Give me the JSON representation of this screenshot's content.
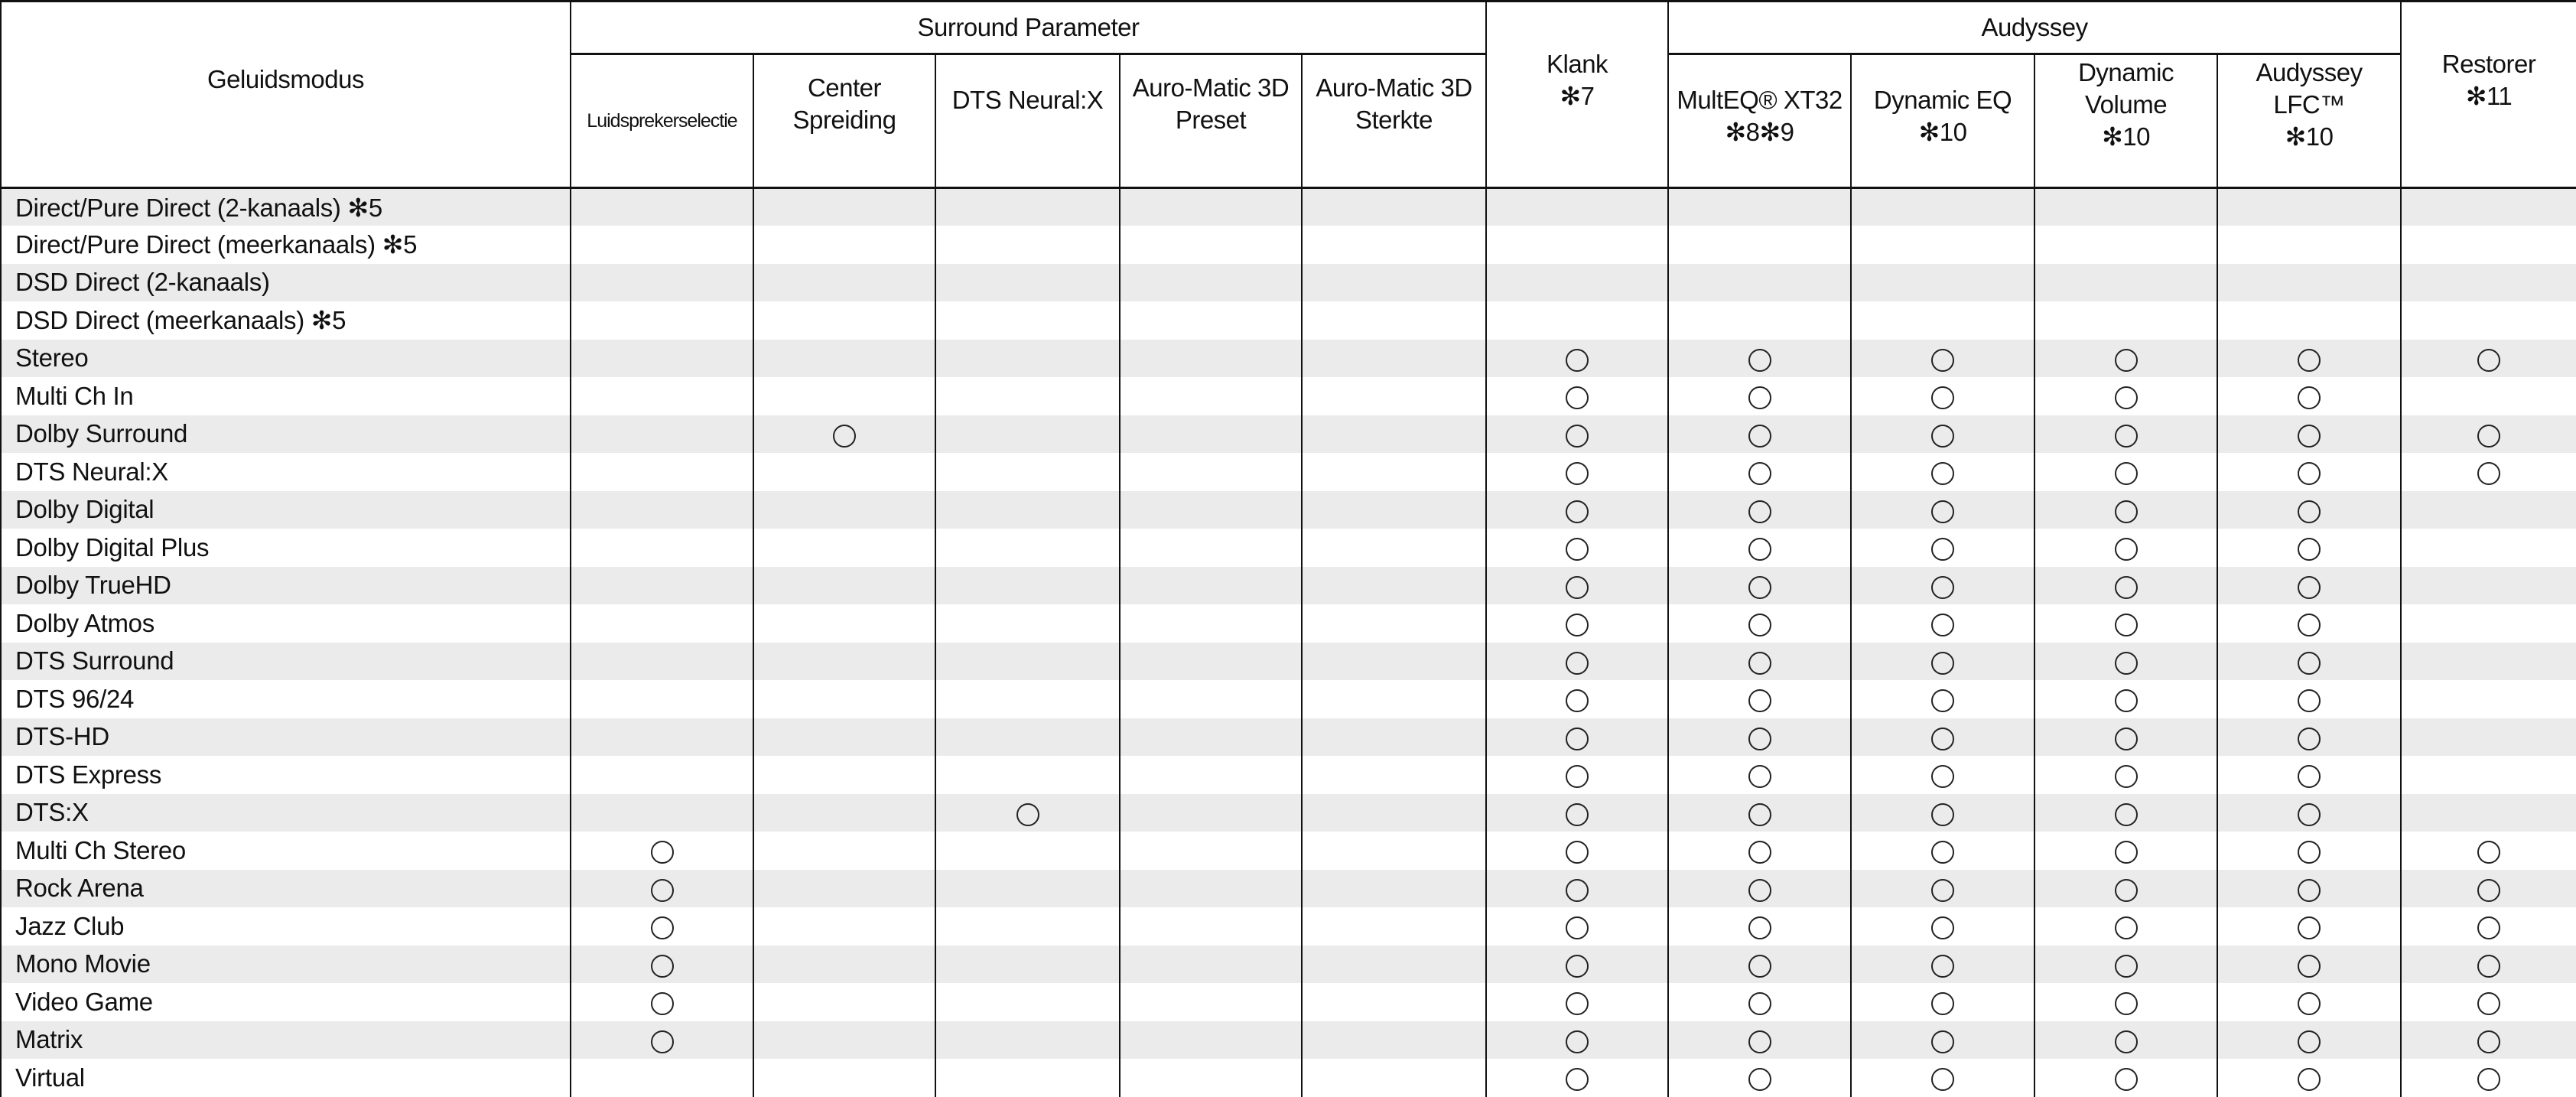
{
  "header": {
    "mode": "Geluidsmodus",
    "surround_group": "Surround Parameter",
    "klank": [
      "Klank",
      "✻7"
    ],
    "audyssey_group": "Audyssey",
    "restorer": [
      "Restorer",
      "✻11"
    ],
    "columns": [
      [
        "Luidsprekerselectie"
      ],
      [
        "Center",
        "Spreiding"
      ],
      [
        "DTS Neural:X"
      ],
      [
        "Auro-Matic 3D",
        "Preset"
      ],
      [
        "Auro-Matic 3D",
        "Sterkte"
      ],
      [
        "MultEQ® XT32",
        "✻8✻9"
      ],
      [
        "Dynamic EQ",
        "✻10"
      ],
      [
        "Dynamic",
        "Volume",
        "✻10"
      ],
      [
        "Audyssey",
        "LFC™",
        "✻10"
      ]
    ]
  },
  "column_order": [
    "Luidsprekerselectie",
    "Center Spreiding",
    "DTS Neural:X",
    "Auro-Matic 3D Preset",
    "Auro-Matic 3D Sterkte",
    "Klank",
    "MultEQ XT32",
    "Dynamic EQ",
    "Dynamic Volume",
    "Audyssey LFC",
    "Restorer"
  ],
  "mark_icon": "circle",
  "rows": [
    {
      "mode": "Direct/Pure Direct (2-kanaals) ✻5",
      "marks": [
        0,
        0,
        0,
        0,
        0,
        0,
        0,
        0,
        0,
        0,
        0
      ]
    },
    {
      "mode": "Direct/Pure Direct (meerkanaals) ✻5",
      "marks": [
        0,
        0,
        0,
        0,
        0,
        0,
        0,
        0,
        0,
        0,
        0
      ]
    },
    {
      "mode": "DSD Direct (2-kanaals)",
      "marks": [
        0,
        0,
        0,
        0,
        0,
        0,
        0,
        0,
        0,
        0,
        0
      ]
    },
    {
      "mode": "DSD Direct (meerkanaals) ✻5",
      "marks": [
        0,
        0,
        0,
        0,
        0,
        0,
        0,
        0,
        0,
        0,
        0
      ]
    },
    {
      "mode": "Stereo",
      "marks": [
        0,
        0,
        0,
        0,
        0,
        1,
        1,
        1,
        1,
        1,
        1
      ]
    },
    {
      "mode": "Multi Ch In",
      "marks": [
        0,
        0,
        0,
        0,
        0,
        1,
        1,
        1,
        1,
        1,
        0
      ]
    },
    {
      "mode": "Dolby Surround",
      "marks": [
        0,
        1,
        0,
        0,
        0,
        1,
        1,
        1,
        1,
        1,
        1
      ]
    },
    {
      "mode": "DTS Neural:X",
      "marks": [
        0,
        0,
        0,
        0,
        0,
        1,
        1,
        1,
        1,
        1,
        1
      ]
    },
    {
      "mode": "Dolby Digital",
      "marks": [
        0,
        0,
        0,
        0,
        0,
        1,
        1,
        1,
        1,
        1,
        0
      ]
    },
    {
      "mode": "Dolby Digital Plus",
      "marks": [
        0,
        0,
        0,
        0,
        0,
        1,
        1,
        1,
        1,
        1,
        0
      ]
    },
    {
      "mode": "Dolby TrueHD",
      "marks": [
        0,
        0,
        0,
        0,
        0,
        1,
        1,
        1,
        1,
        1,
        0
      ]
    },
    {
      "mode": "Dolby Atmos",
      "marks": [
        0,
        0,
        0,
        0,
        0,
        1,
        1,
        1,
        1,
        1,
        0
      ]
    },
    {
      "mode": "DTS Surround",
      "marks": [
        0,
        0,
        0,
        0,
        0,
        1,
        1,
        1,
        1,
        1,
        0
      ]
    },
    {
      "mode": "DTS 96/24",
      "marks": [
        0,
        0,
        0,
        0,
        0,
        1,
        1,
        1,
        1,
        1,
        0
      ]
    },
    {
      "mode": "DTS-HD",
      "marks": [
        0,
        0,
        0,
        0,
        0,
        1,
        1,
        1,
        1,
        1,
        0
      ]
    },
    {
      "mode": "DTS Express",
      "marks": [
        0,
        0,
        0,
        0,
        0,
        1,
        1,
        1,
        1,
        1,
        0
      ]
    },
    {
      "mode": "DTS:X",
      "marks": [
        0,
        0,
        1,
        0,
        0,
        1,
        1,
        1,
        1,
        1,
        0
      ]
    },
    {
      "mode": "Multi Ch Stereo",
      "marks": [
        1,
        0,
        0,
        0,
        0,
        1,
        1,
        1,
        1,
        1,
        1
      ]
    },
    {
      "mode": "Rock Arena",
      "marks": [
        1,
        0,
        0,
        0,
        0,
        1,
        1,
        1,
        1,
        1,
        1
      ]
    },
    {
      "mode": "Jazz Club",
      "marks": [
        1,
        0,
        0,
        0,
        0,
        1,
        1,
        1,
        1,
        1,
        1
      ]
    },
    {
      "mode": "Mono Movie",
      "marks": [
        1,
        0,
        0,
        0,
        0,
        1,
        1,
        1,
        1,
        1,
        1
      ]
    },
    {
      "mode": "Video Game",
      "marks": [
        1,
        0,
        0,
        0,
        0,
        1,
        1,
        1,
        1,
        1,
        1
      ]
    },
    {
      "mode": "Matrix",
      "marks": [
        1,
        0,
        0,
        0,
        0,
        1,
        1,
        1,
        1,
        1,
        1
      ]
    },
    {
      "mode": "Virtual",
      "marks": [
        0,
        0,
        0,
        0,
        0,
        1,
        1,
        1,
        1,
        1,
        1
      ]
    }
  ]
}
